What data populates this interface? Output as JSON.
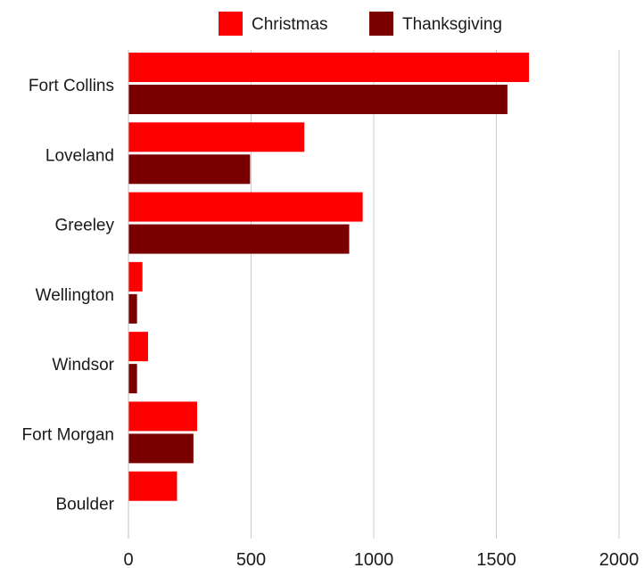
{
  "chart_data": {
    "type": "bar",
    "orientation": "horizontal",
    "title": "",
    "xlabel": "",
    "ylabel": "",
    "categories": [
      "Fort Collins",
      "Loveland",
      "Greeley",
      "Wellington",
      "Windsor",
      "Fort Morgan",
      "Boulder"
    ],
    "series": [
      {
        "name": "Christmas",
        "color": "#ff0000",
        "values": [
          1633,
          717,
          955,
          57,
          80,
          280,
          198
        ]
      },
      {
        "name": "Thanksgiving",
        "color": "#7a0000",
        "values": [
          1545,
          496,
          900,
          35,
          35,
          265,
          0
        ]
      }
    ],
    "xlim": [
      0,
      2000
    ],
    "xticks": [
      "0",
      "500",
      "1000",
      "1500",
      "2000"
    ],
    "legend": {
      "position": "top"
    },
    "grid": {
      "vertical": true,
      "color": "#cccccc"
    }
  }
}
